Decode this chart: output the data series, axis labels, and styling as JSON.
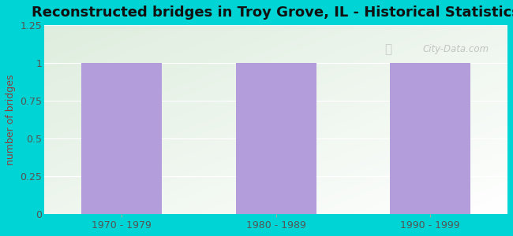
{
  "title": "Reconstructed bridges in Troy Grove, IL - Historical Statistics",
  "categories": [
    "1970 - 1979",
    "1980 - 1989",
    "1990 - 1999"
  ],
  "values": [
    1,
    1,
    1
  ],
  "bar_color": "#b39ddb",
  "ylabel": "number of bridges",
  "ylim": [
    0,
    1.25
  ],
  "yticks": [
    0,
    0.25,
    0.5,
    0.75,
    1,
    1.25
  ],
  "background_outer": "#00d4d4",
  "grad_color_topleft": "#ddeedd",
  "grad_color_bottomright": "#ffffff",
  "title_fontsize": 13,
  "axis_label_fontsize": 9,
  "tick_fontsize": 9,
  "ylabel_color": "#8b4040",
  "tick_color": "#555555",
  "title_color": "#111111",
  "watermark": "City-Data.com",
  "bar_width": 0.52
}
